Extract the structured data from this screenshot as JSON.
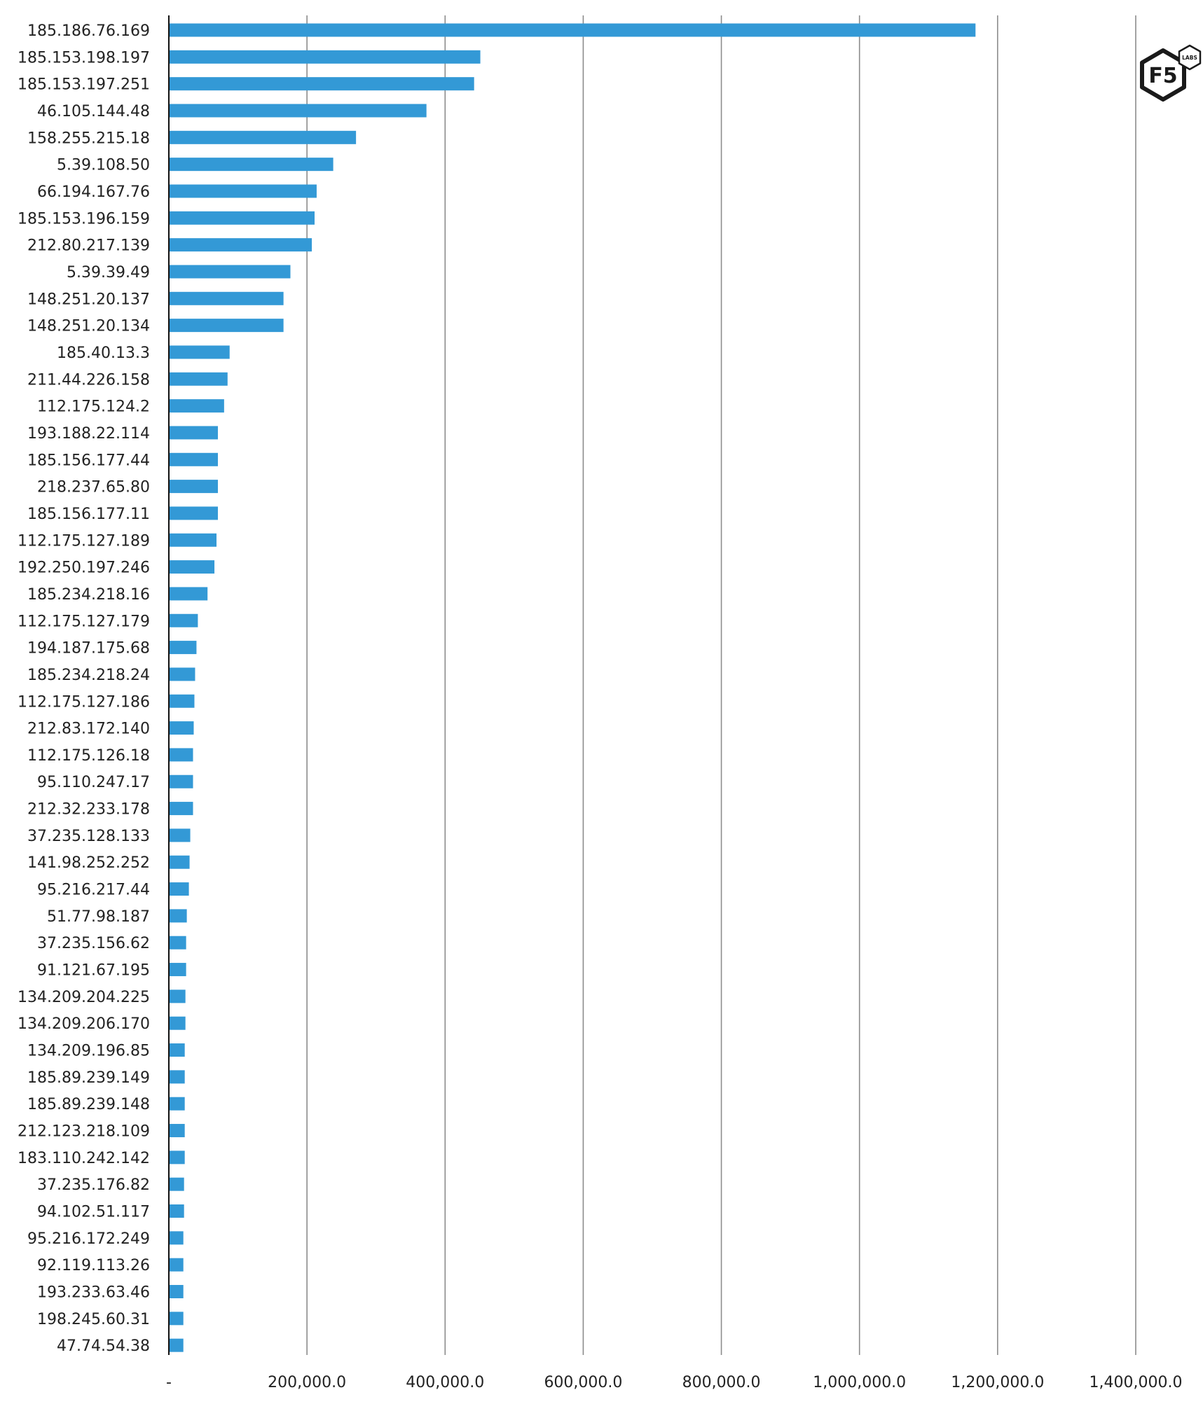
{
  "chart_data": {
    "type": "bar",
    "orientation": "horizontal",
    "categories": [
      "185.186.76.169",
      "185.153.198.197",
      "185.153.197.251",
      "46.105.144.48",
      "158.255.215.18",
      "5.39.108.50",
      "66.194.167.76",
      "185.153.196.159",
      "212.80.217.139",
      "5.39.39.49",
      "148.251.20.137",
      "148.251.20.134",
      "185.40.13.3",
      "211.44.226.158",
      "112.175.124.2",
      "193.188.22.114",
      "185.156.177.44",
      "218.237.65.80",
      "185.156.177.11",
      "112.175.127.189",
      "192.250.197.246",
      "185.234.218.16",
      "112.175.127.179",
      "194.187.175.68",
      "185.234.218.24",
      "112.175.127.186",
      "212.83.172.140",
      "112.175.126.18",
      "95.110.247.17",
      "212.32.233.178",
      "37.235.128.133",
      "141.98.252.252",
      "95.216.217.44",
      "51.77.98.187",
      "37.235.156.62",
      "91.121.67.195",
      "134.209.204.225",
      "134.209.206.170",
      "134.209.196.85",
      "185.89.239.149",
      "185.89.239.148",
      "212.123.218.109",
      "183.110.242.142",
      "37.235.176.82",
      "94.102.51.117",
      "95.216.172.249",
      "92.119.113.26",
      "193.233.63.46",
      "198.245.60.31",
      "47.74.54.38"
    ],
    "values": [
      1168000,
      451000,
      442000,
      373000,
      271000,
      238000,
      214000,
      211000,
      207000,
      176000,
      166000,
      166000,
      88000,
      85000,
      80000,
      71000,
      71000,
      71000,
      71000,
      69000,
      66000,
      56000,
      42000,
      40000,
      38000,
      37000,
      36000,
      35000,
      35000,
      35000,
      31000,
      30000,
      29000,
      26000,
      25000,
      25000,
      24000,
      24000,
      23000,
      23000,
      23000,
      23000,
      23000,
      22000,
      22000,
      21000,
      21000,
      21000,
      21000,
      21000
    ],
    "xlim": [
      0,
      1400000
    ],
    "ticks": [
      0,
      200000,
      400000,
      600000,
      800000,
      1000000,
      1200000,
      1400000
    ],
    "tick_labels": [
      "-",
      "200,000.0",
      "400,000.0",
      "600,000.0",
      "800,000.0",
      "1,000,000.0",
      "1,200,000.0",
      "1,400,000.0"
    ],
    "title": "",
    "xlabel": "",
    "ylabel": "",
    "grid": "vertical",
    "legend": "none",
    "bar_color": "#3399d6",
    "gridline_color": "#8c8c8c",
    "axis_color": "#111111",
    "text_color": "#222222"
  },
  "logo": {
    "brand": "F5",
    "sub": "LABS",
    "icon": "f5-labs-logo-icon"
  }
}
